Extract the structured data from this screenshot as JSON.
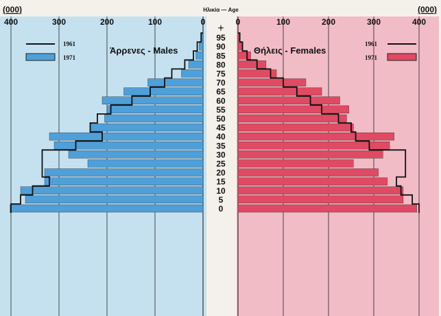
{
  "colors": {
    "male_panel": "#c5e1f0",
    "female_panel": "#f2bcc6",
    "male_bar": "#4f9fd9",
    "female_bar": "#e04a63",
    "outline": "#111111",
    "grid": "#222222"
  },
  "axis": {
    "unit_left": "(000)",
    "unit_right": "(000)",
    "age_title": "Ηλικία — Age",
    "x_ticks": [
      400,
      300,
      200,
      100,
      0
    ],
    "plus": "+"
  },
  "chart_data": {
    "type": "bar",
    "orientation": "horizontal-population-pyramid",
    "xlabel": "(000)",
    "ylabel": "Ηλικία — Age",
    "xlim": [
      0,
      400
    ],
    "grid": true,
    "age_labels": [
      "95",
      "90",
      "85",
      "80",
      "75",
      "70",
      "65",
      "60",
      "55",
      "50",
      "45",
      "40",
      "35",
      "30",
      "25",
      "20",
      "15",
      "10",
      "5",
      "0"
    ],
    "males": {
      "title": "Άρρενες - Males",
      "legend": [
        {
          "label": "1961",
          "style": "line"
        },
        {
          "label": "1971",
          "style": "bar"
        }
      ],
      "series": [
        {
          "name": "1971",
          "style": "bar",
          "values": [
            3,
            8,
            15,
            30,
            45,
            115,
            165,
            210,
            200,
            205,
            235,
            320,
            310,
            280,
            240,
            330,
            330,
            380,
            370,
            402
          ]
        },
        {
          "name": "1961",
          "style": "line",
          "values": [
            4,
            12,
            20,
            38,
            65,
            80,
            110,
            148,
            192,
            220,
            235,
            210,
            265,
            335,
            335,
            335,
            320,
            355,
            380,
            400
          ]
        }
      ]
    },
    "females": {
      "title": "Θήλεις - Females",
      "legend": [
        {
          "label": "1961",
          "style": "line"
        },
        {
          "label": "1971",
          "style": "bar"
        }
      ],
      "series": [
        {
          "name": "1971",
          "style": "bar",
          "values": [
            3,
            8,
            28,
            62,
            85,
            150,
            185,
            225,
            245,
            240,
            255,
            345,
            335,
            320,
            255,
            310,
            330,
            365,
            365,
            395
          ]
        },
        {
          "name": "1961",
          "style": "line",
          "values": [
            4,
            10,
            20,
            42,
            72,
            100,
            130,
            160,
            185,
            222,
            250,
            260,
            290,
            370,
            370,
            370,
            350,
            360,
            385,
            400
          ]
        }
      ]
    }
  }
}
